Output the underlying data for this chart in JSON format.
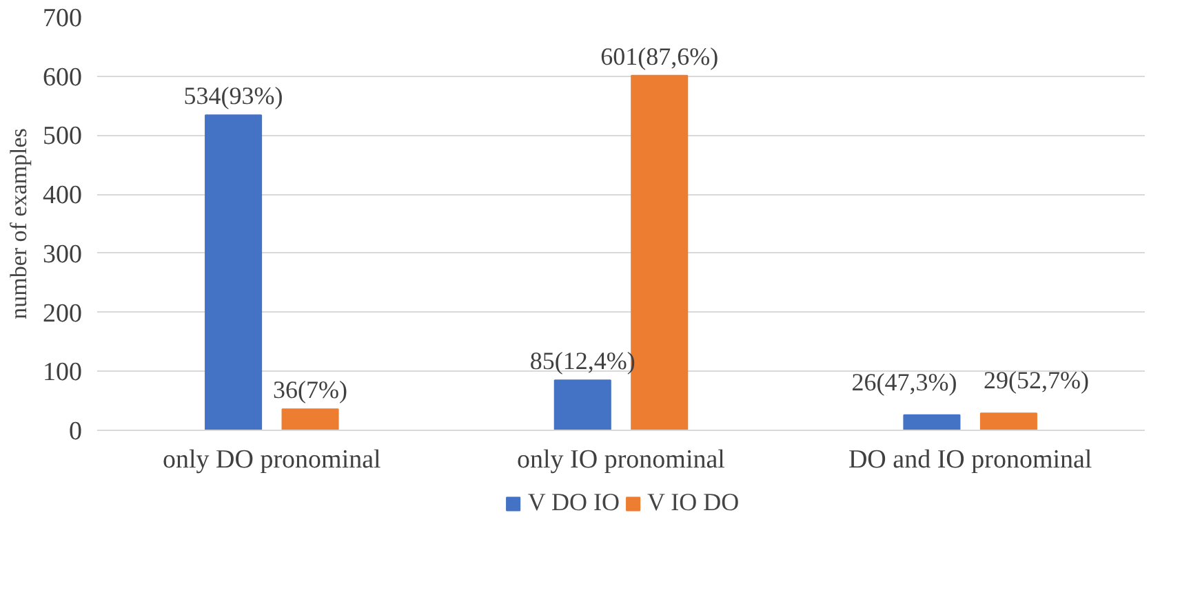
{
  "chart_data": {
    "type": "bar",
    "ylabel": "number of examples",
    "categories": [
      "only DO pronominal",
      "only IO pronominal",
      "DO and IO pronominal"
    ],
    "series": [
      {
        "name": "V DO IO",
        "color": "#4472c4",
        "values": [
          534,
          85,
          26
        ],
        "value_labels": [
          "534(93%)",
          "85(12,4%)",
          "26(47,3%)"
        ]
      },
      {
        "name": "V IO DO",
        "color": "#ed7d31",
        "values": [
          36,
          601,
          29
        ],
        "value_labels": [
          "36(7%)",
          "601(87,6%)",
          "29(52,7%)"
        ]
      }
    ],
    "ylim": [
      0,
      700
    ],
    "yticks": [
      0,
      100,
      200,
      300,
      400,
      500,
      600,
      700
    ],
    "grid": "y",
    "legend": "bottom"
  }
}
